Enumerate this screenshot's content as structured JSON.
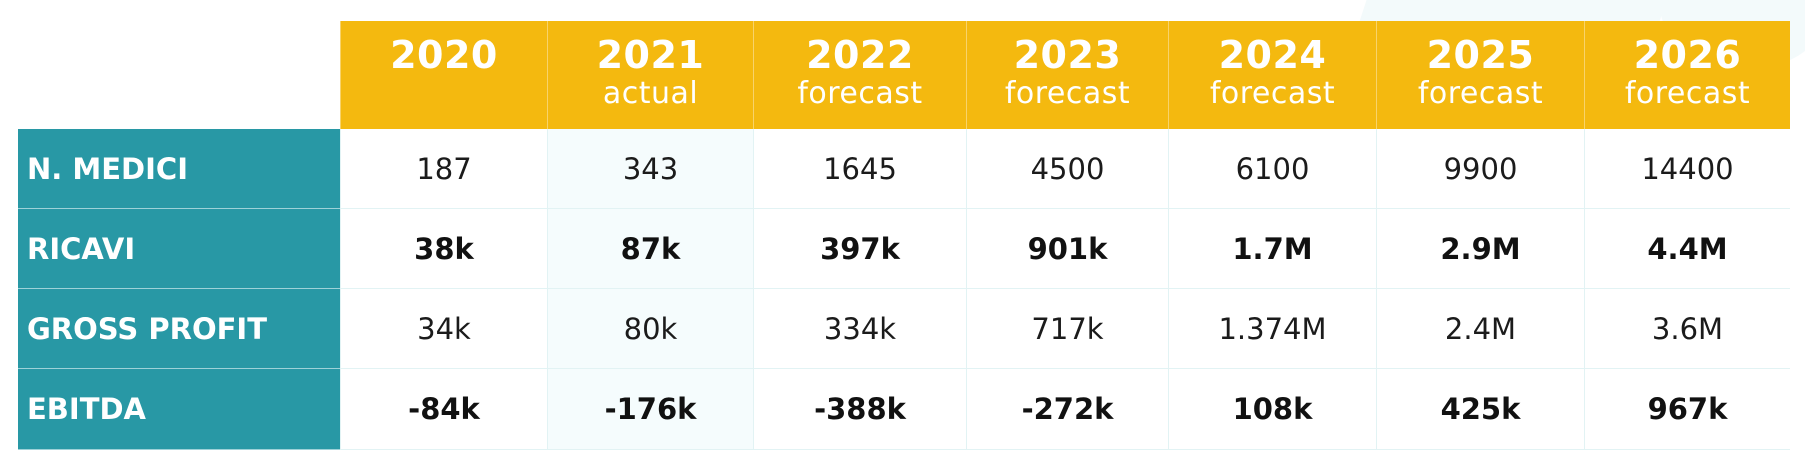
{
  "table": {
    "columns": [
      {
        "year": "2020",
        "sub": ""
      },
      {
        "year": "2021",
        "sub": "actual"
      },
      {
        "year": "2022",
        "sub": "forecast"
      },
      {
        "year": "2023",
        "sub": "forecast"
      },
      {
        "year": "2024",
        "sub": "forecast"
      },
      {
        "year": "2025",
        "sub": "forecast"
      },
      {
        "year": "2026",
        "sub": "forecast"
      }
    ],
    "rows": [
      {
        "label": "N. MEDICI",
        "bold": false,
        "values": [
          "187",
          "343",
          "1645",
          "4500",
          "6100",
          "9900",
          "14400"
        ]
      },
      {
        "label": "RICAVI",
        "bold": true,
        "values": [
          "38k",
          "87k",
          "397k",
          "901k",
          "1.7M",
          "2.9M",
          "4.4M"
        ]
      },
      {
        "label": "GROSS PROFIT",
        "bold": false,
        "values": [
          "34k",
          "80k",
          "334k",
          "717k",
          "1.374M",
          "2.4M",
          "3.6M"
        ]
      },
      {
        "label": "EBITDA",
        "bold": true,
        "values": [
          "-84k",
          "-176k",
          "-388k",
          "-272k",
          "108k",
          "425k",
          "967k"
        ]
      }
    ]
  },
  "colors": {
    "header_bg": "#f4b90f",
    "label_bg": "#2898a5",
    "text": "#1b1b1b"
  }
}
